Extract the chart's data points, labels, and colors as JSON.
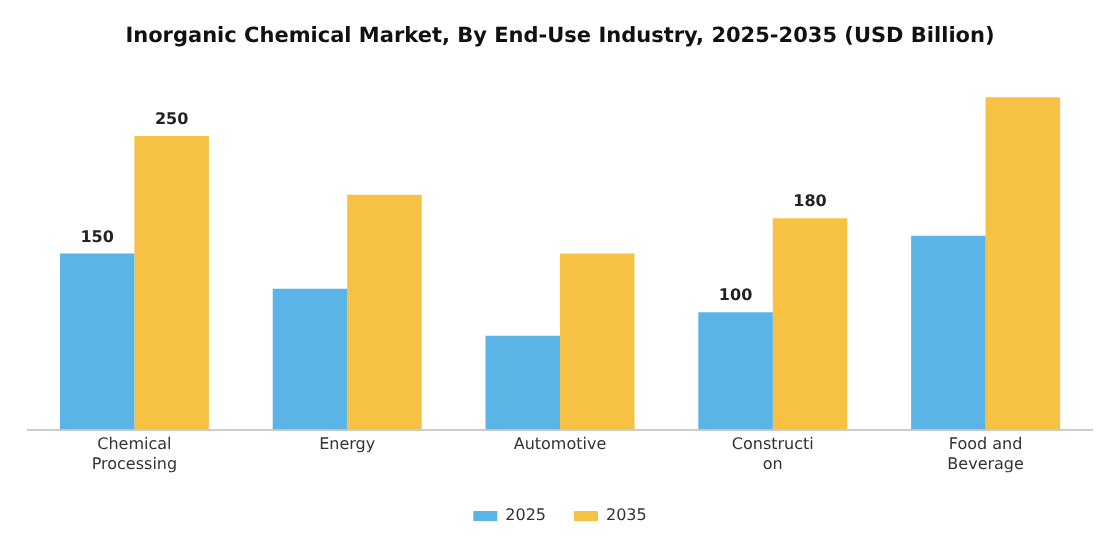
{
  "chart_data": {
    "type": "bar",
    "title": "Inorganic Chemical Market, By End-Use Industry, 2025-2035 (USD Billion)",
    "categories": [
      "Chemical Processing",
      "Energy",
      "Automotive",
      "Construction",
      "Food and Beverage"
    ],
    "series": [
      {
        "name": "2025",
        "color": "#5ab4e5",
        "values": [
          150,
          120,
          80,
          100,
          165
        ],
        "value_labels": [
          "150",
          null,
          null,
          "100",
          null
        ]
      },
      {
        "name": "2035",
        "color": "#f7c244",
        "values": [
          250,
          200,
          150,
          180,
          283
        ],
        "value_labels": [
          "250",
          null,
          null,
          "180",
          null
        ]
      }
    ],
    "legend": "bottom",
    "grid": false,
    "tick_labels": "x"
  }
}
